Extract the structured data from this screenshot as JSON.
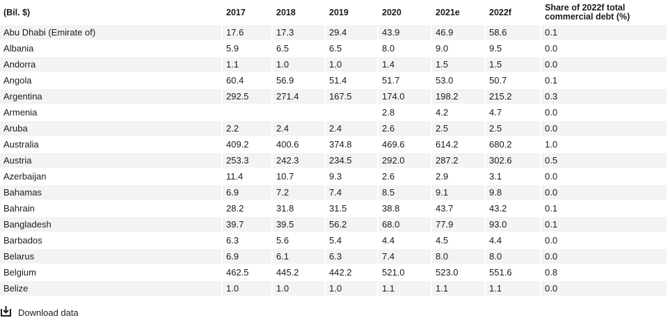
{
  "chart_data": {
    "type": "table",
    "columns": [
      "(Bil. $)",
      "2017",
      "2018",
      "2019",
      "2020",
      "2021e",
      "2022f",
      "Share of 2022f total commercial debt (%)"
    ],
    "rows": [
      [
        "Abu Dhabi (Emirate of)",
        "17.6",
        "17.3",
        "29.4",
        "43.9",
        "46.9",
        "58.6",
        "0.1"
      ],
      [
        "Albania",
        "5.9",
        "6.5",
        "6.5",
        "8.0",
        "9.0",
        "9.5",
        "0.0"
      ],
      [
        "Andorra",
        "1.1",
        "1.0",
        "1.0",
        "1.4",
        "1.5",
        "1.5",
        "0.0"
      ],
      [
        "Angola",
        "60.4",
        "56.9",
        "51.4",
        "51.7",
        "53.0",
        "50.7",
        "0.1"
      ],
      [
        "Argentina",
        "292.5",
        "271.4",
        "167.5",
        "174.0",
        "198.2",
        "215.2",
        "0.3"
      ],
      [
        "Armenia",
        "",
        "",
        "",
        "2.8",
        "4.2",
        "4.7",
        "0.0"
      ],
      [
        "Aruba",
        "2.2",
        "2.4",
        "2.4",
        "2.6",
        "2.5",
        "2.5",
        "0.0"
      ],
      [
        "Australia",
        "409.2",
        "400.6",
        "374.8",
        "469.6",
        "614.2",
        "680.2",
        "1.0"
      ],
      [
        "Austria",
        "253.3",
        "242.3",
        "234.5",
        "292.0",
        "287.2",
        "302.6",
        "0.5"
      ],
      [
        "Azerbaijan",
        "11.4",
        "10.7",
        "9.3",
        "2.6",
        "2.9",
        "3.1",
        "0.0"
      ],
      [
        "Bahamas",
        "6.9",
        "7.2",
        "7.4",
        "8.5",
        "9.1",
        "9.8",
        "0.0"
      ],
      [
        "Bahrain",
        "28.2",
        "31.8",
        "31.5",
        "38.8",
        "43.7",
        "43.2",
        "0.1"
      ],
      [
        "Bangladesh",
        "39.7",
        "39.5",
        "56.2",
        "68.0",
        "77.9",
        "93.0",
        "0.1"
      ],
      [
        "Barbados",
        "6.3",
        "5.6",
        "5.4",
        "4.4",
        "4.5",
        "4.4",
        "0.0"
      ],
      [
        "Belarus",
        "6.9",
        "6.1",
        "6.3",
        "7.4",
        "8.0",
        "8.0",
        "0.0"
      ],
      [
        "Belgium",
        "462.5",
        "445.2",
        "442.2",
        "521.0",
        "523.0",
        "551.6",
        "0.8"
      ],
      [
        "Belize",
        "1.0",
        "1.0",
        "1.0",
        "1.1",
        "1.1",
        "1.1",
        "0.0"
      ]
    ]
  },
  "download": {
    "label": "Download data",
    "icon": "download-icon"
  }
}
